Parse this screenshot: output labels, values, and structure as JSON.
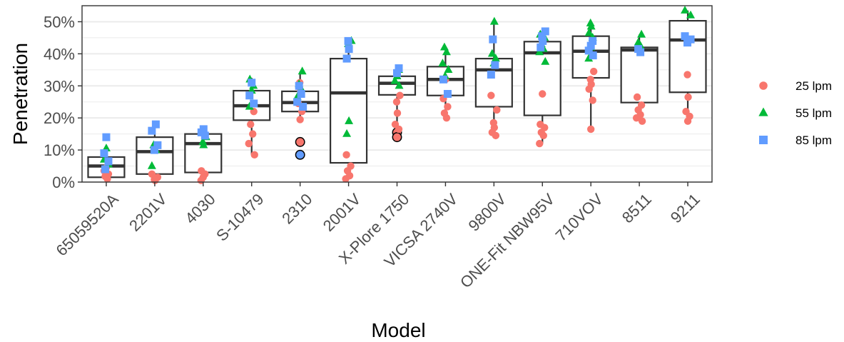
{
  "chart_data": {
    "type": "boxplot-with-points",
    "xlabel": "Model",
    "ylabel": "Penetration",
    "ylim": [
      0,
      0.55
    ],
    "y_ticks": [
      0,
      0.1,
      0.2,
      0.3,
      0.4,
      0.5
    ],
    "y_tick_labels": [
      "0%",
      "10%",
      "20%",
      "30%",
      "40%",
      "50%"
    ],
    "grid": true,
    "legend_position": "right",
    "categories": [
      "65059520A",
      "2201V",
      "4030",
      "S-10479",
      "2310",
      "2001V",
      "X-Plore 1750",
      "VICSA 2740V",
      "9800V",
      "ONE-Fit NBW95V",
      "710VOV",
      "8511",
      "9211"
    ],
    "boxes": [
      {
        "q1": 0.015,
        "median": 0.05,
        "q3": 0.078,
        "whisker_low": 0.005,
        "whisker_high": 0.11
      },
      {
        "q1": 0.025,
        "median": 0.095,
        "q3": 0.14,
        "whisker_low": 0.005,
        "whisker_high": 0.18
      },
      {
        "q1": 0.03,
        "median": 0.12,
        "q3": 0.15,
        "whisker_low": 0.005,
        "whisker_high": 0.165
      },
      {
        "q1": 0.193,
        "median": 0.238,
        "q3": 0.285,
        "whisker_low": 0.085,
        "whisker_high": 0.325
      },
      {
        "q1": 0.22,
        "median": 0.248,
        "q3": 0.283,
        "whisker_low": 0.19,
        "whisker_high": 0.345
      },
      {
        "q1": 0.06,
        "median": 0.278,
        "q3": 0.385,
        "whisker_low": 0.01,
        "whisker_high": 0.44
      },
      {
        "q1": 0.272,
        "median": 0.308,
        "q3": 0.33,
        "whisker_low": 0.175,
        "whisker_high": 0.355
      },
      {
        "q1": 0.27,
        "median": 0.32,
        "q3": 0.36,
        "whisker_low": 0.2,
        "whisker_high": 0.42
      },
      {
        "q1": 0.235,
        "median": 0.35,
        "q3": 0.385,
        "whisker_low": 0.145,
        "whisker_high": 0.5
      },
      {
        "q1": 0.208,
        "median": 0.403,
        "q3": 0.438,
        "whisker_low": 0.12,
        "whisker_high": 0.47
      },
      {
        "q1": 0.325,
        "median": 0.408,
        "q3": 0.455,
        "whisker_low": 0.16,
        "whisker_high": 0.495
      },
      {
        "q1": 0.248,
        "median": 0.412,
        "q3": 0.42,
        "whisker_low": 0.19,
        "whisker_high": 0.46
      },
      {
        "q1": 0.28,
        "median": 0.443,
        "q3": 0.503,
        "whisker_low": 0.185,
        "whisker_high": 0.535
      }
    ],
    "outliers": [
      {
        "category": 4,
        "y": 0.125,
        "color": "#F8766D"
      },
      {
        "category": 4,
        "y": 0.085,
        "color": "#619CFF"
      },
      {
        "category": 6,
        "y": 0.155,
        "color": "#F8766D"
      },
      {
        "category": 6,
        "y": 0.14,
        "color": "#F8766D"
      }
    ],
    "series": [
      {
        "name": "25 lpm",
        "shape": "circle",
        "color": "#F8766D",
        "points": [
          [
            0,
            0.045
          ],
          [
            0,
            0.035
          ],
          [
            0,
            0.025
          ],
          [
            0,
            0.018
          ],
          [
            0,
            0.01
          ],
          [
            1,
            0.025
          ],
          [
            1,
            0.015
          ],
          [
            1,
            0.008
          ],
          [
            1,
            0.005
          ],
          [
            2,
            0.035
          ],
          [
            2,
            0.025
          ],
          [
            2,
            0.015
          ],
          [
            2,
            0.005
          ],
          [
            3,
            0.22
          ],
          [
            3,
            0.18
          ],
          [
            3,
            0.15
          ],
          [
            3,
            0.12
          ],
          [
            3,
            0.085
          ],
          [
            4,
            0.31
          ],
          [
            4,
            0.285
          ],
          [
            4,
            0.245
          ],
          [
            4,
            0.22
          ],
          [
            4,
            0.195
          ],
          [
            5,
            0.085
          ],
          [
            5,
            0.05
          ],
          [
            5,
            0.035
          ],
          [
            5,
            0.02
          ],
          [
            5,
            0.01
          ],
          [
            6,
            0.27
          ],
          [
            6,
            0.25
          ],
          [
            6,
            0.215
          ],
          [
            6,
            0.18
          ],
          [
            6,
            0.165
          ],
          [
            7,
            0.32
          ],
          [
            7,
            0.26
          ],
          [
            7,
            0.235
          ],
          [
            7,
            0.215
          ],
          [
            7,
            0.2
          ],
          [
            8,
            0.27
          ],
          [
            8,
            0.225
          ],
          [
            8,
            0.185
          ],
          [
            8,
            0.17
          ],
          [
            8,
            0.155
          ],
          [
            8,
            0.145
          ],
          [
            9,
            0.275
          ],
          [
            9,
            0.18
          ],
          [
            9,
            0.17
          ],
          [
            9,
            0.155
          ],
          [
            9,
            0.145
          ],
          [
            9,
            0.12
          ],
          [
            10,
            0.345
          ],
          [
            10,
            0.32
          ],
          [
            10,
            0.305
          ],
          [
            10,
            0.29
          ],
          [
            10,
            0.255
          ],
          [
            10,
            0.165
          ],
          [
            11,
            0.265
          ],
          [
            11,
            0.24
          ],
          [
            11,
            0.225
          ],
          [
            11,
            0.21
          ],
          [
            11,
            0.2
          ],
          [
            11,
            0.19
          ],
          [
            12,
            0.335
          ],
          [
            12,
            0.265
          ],
          [
            12,
            0.22
          ],
          [
            12,
            0.205
          ],
          [
            12,
            0.19
          ]
        ]
      },
      {
        "name": "55 lpm",
        "shape": "triangle",
        "color": "#00BA38",
        "points": [
          [
            0,
            0.105
          ],
          [
            0,
            0.07
          ],
          [
            0,
            0.055
          ],
          [
            1,
            0.115
          ],
          [
            1,
            0.1
          ],
          [
            1,
            0.05
          ],
          [
            2,
            0.14
          ],
          [
            2,
            0.125
          ],
          [
            2,
            0.115
          ],
          [
            3,
            0.32
          ],
          [
            3,
            0.3
          ],
          [
            3,
            0.285
          ],
          [
            3,
            0.235
          ],
          [
            4,
            0.345
          ],
          [
            4,
            0.305
          ],
          [
            4,
            0.29
          ],
          [
            4,
            0.265
          ],
          [
            5,
            0.44
          ],
          [
            5,
            0.43
          ],
          [
            5,
            0.19
          ],
          [
            5,
            0.15
          ],
          [
            6,
            0.35
          ],
          [
            6,
            0.33
          ],
          [
            6,
            0.315
          ],
          [
            6,
            0.3
          ],
          [
            7,
            0.42
          ],
          [
            7,
            0.405
          ],
          [
            7,
            0.37
          ],
          [
            7,
            0.35
          ],
          [
            7,
            0.33
          ],
          [
            8,
            0.5
          ],
          [
            8,
            0.4
          ],
          [
            8,
            0.385
          ],
          [
            8,
            0.37
          ],
          [
            9,
            0.46
          ],
          [
            9,
            0.45
          ],
          [
            9,
            0.43
          ],
          [
            9,
            0.415
          ],
          [
            9,
            0.405
          ],
          [
            9,
            0.375
          ],
          [
            10,
            0.495
          ],
          [
            10,
            0.485
          ],
          [
            10,
            0.465
          ],
          [
            10,
            0.45
          ],
          [
            10,
            0.42
          ],
          [
            10,
            0.385
          ],
          [
            11,
            0.46
          ],
          [
            11,
            0.435
          ],
          [
            11,
            0.425
          ],
          [
            12,
            0.535
          ],
          [
            12,
            0.52
          ]
        ]
      },
      {
        "name": "85 lpm",
        "shape": "square",
        "color": "#619CFF",
        "points": [
          [
            0,
            0.14
          ],
          [
            0,
            0.09
          ],
          [
            0,
            0.065
          ],
          [
            0,
            0.04
          ],
          [
            1,
            0.18
          ],
          [
            1,
            0.16
          ],
          [
            1,
            0.115
          ],
          [
            1,
            0.1
          ],
          [
            2,
            0.165
          ],
          [
            2,
            0.155
          ],
          [
            2,
            0.145
          ],
          [
            3,
            0.31
          ],
          [
            3,
            0.27
          ],
          [
            3,
            0.245
          ],
          [
            4,
            0.3
          ],
          [
            4,
            0.275
          ],
          [
            4,
            0.25
          ],
          [
            4,
            0.235
          ],
          [
            5,
            0.44
          ],
          [
            5,
            0.415
          ],
          [
            5,
            0.385
          ],
          [
            6,
            0.355
          ],
          [
            6,
            0.34
          ],
          [
            7,
            0.32
          ],
          [
            7,
            0.275
          ],
          [
            8,
            0.445
          ],
          [
            8,
            0.365
          ],
          [
            8,
            0.335
          ],
          [
            9,
            0.47
          ],
          [
            9,
            0.455
          ],
          [
            9,
            0.44
          ],
          [
            9,
            0.42
          ],
          [
            10,
            0.44
          ],
          [
            10,
            0.425
          ],
          [
            10,
            0.41
          ],
          [
            10,
            0.395
          ],
          [
            11,
            0.415
          ],
          [
            11,
            0.405
          ],
          [
            12,
            0.455
          ],
          [
            12,
            0.445
          ],
          [
            12,
            0.435
          ]
        ]
      }
    ]
  }
}
